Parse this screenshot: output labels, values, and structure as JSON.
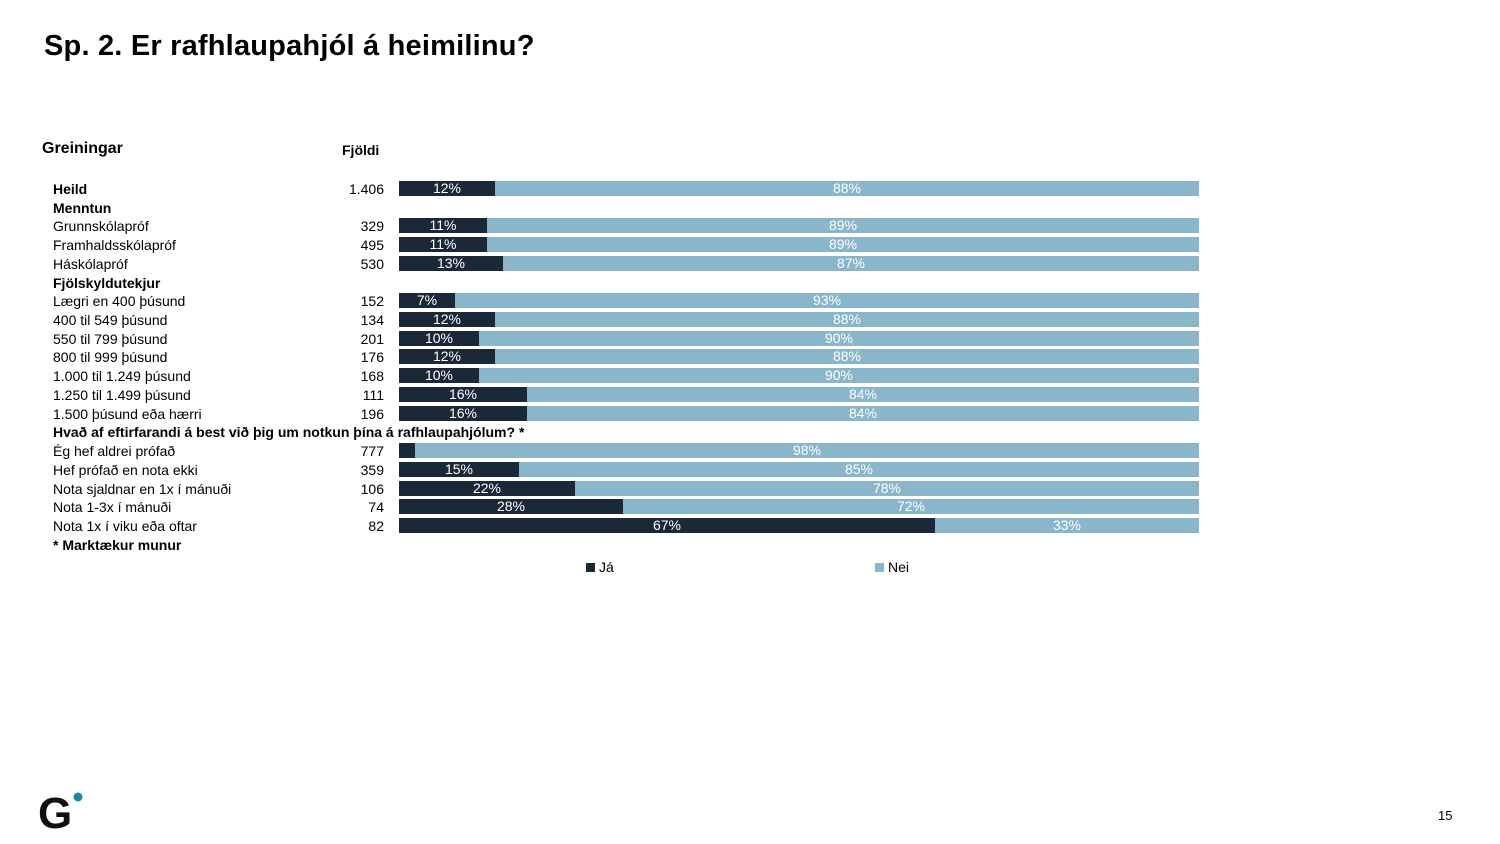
{
  "title": "Sp. 2. Er rafhlaupahjól á heimilinu?",
  "header": {
    "left_label": "Greiningar",
    "count_label": "Fjöldi"
  },
  "colors": {
    "ja": "#1b2838",
    "nei": "#8ab6cb",
    "logo": "#111111",
    "logo_dot": "#1b8a9a"
  },
  "chart_data": {
    "type": "bar",
    "orientation": "horizontal-stacked-100",
    "legend_position": "bottom",
    "series": [
      {
        "name": "Já",
        "color": "#1b2838"
      },
      {
        "name": "Nei",
        "color": "#8ab6cb"
      }
    ],
    "rows": [
      {
        "label": "Heild",
        "bold": true,
        "count": "1.406",
        "ja": 12,
        "nei": 88,
        "ja_label": "12%",
        "nei_label": "88%"
      },
      {
        "label": "Menntun",
        "section": true
      },
      {
        "label": "Grunnskólapróf",
        "count": "329",
        "ja": 11,
        "nei": 89,
        "ja_label": "11%",
        "nei_label": "89%"
      },
      {
        "label": "Framhaldsskólapróf",
        "count": "495",
        "ja": 11,
        "nei": 89,
        "ja_label": "11%",
        "nei_label": "89%"
      },
      {
        "label": "Háskólapróf",
        "count": "530",
        "ja": 13,
        "nei": 87,
        "ja_label": "13%",
        "nei_label": "87%"
      },
      {
        "label": "Fjölskyldutekjur",
        "section": true
      },
      {
        "label": "Lægri en 400 þúsund",
        "count": "152",
        "ja": 7,
        "nei": 93,
        "ja_label": "7%",
        "nei_label": "93%"
      },
      {
        "label": "400 til 549 þúsund",
        "count": "134",
        "ja": 12,
        "nei": 88,
        "ja_label": "12%",
        "nei_label": "88%"
      },
      {
        "label": "550 til 799 þúsund",
        "count": "201",
        "ja": 10,
        "nei": 90,
        "ja_label": "10%",
        "nei_label": "90%"
      },
      {
        "label": "800 til 999 þúsund",
        "count": "176",
        "ja": 12,
        "nei": 88,
        "ja_label": "12%",
        "nei_label": "88%"
      },
      {
        "label": "1.000 til 1.249 þúsund",
        "count": "168",
        "ja": 10,
        "nei": 90,
        "ja_label": "10%",
        "nei_label": "90%"
      },
      {
        "label": "1.250 til 1.499 þúsund",
        "count": "111",
        "ja": 16,
        "nei": 84,
        "ja_label": "16%",
        "nei_label": "84%"
      },
      {
        "label": "1.500 þúsund eða hærri",
        "count": "196",
        "ja": 16,
        "nei": 84,
        "ja_label": "16%",
        "nei_label": "84%"
      },
      {
        "label": "Hvað af eftirfarandi á best við þig um notkun þína á rafhlaupahjólum? *",
        "section": true
      },
      {
        "label": "Ég hef aldrei prófað",
        "count": "777",
        "ja": 2,
        "nei": 98,
        "ja_label": "",
        "nei_label": "98%"
      },
      {
        "label": "Hef prófað en nota ekki",
        "count": "359",
        "ja": 15,
        "nei": 85,
        "ja_label": "15%",
        "nei_label": "85%"
      },
      {
        "label": "Nota sjaldnar en 1x í mánuði",
        "count": "106",
        "ja": 22,
        "nei": 78,
        "ja_label": "22%",
        "nei_label": "78%"
      },
      {
        "label": "Nota 1-3x í mánuði",
        "count": "74",
        "ja": 28,
        "nei": 72,
        "ja_label": "28%",
        "nei_label": "72%"
      },
      {
        "label": "Nota 1x í viku eða oftar",
        "count": "82",
        "ja": 67,
        "nei": 33,
        "ja_label": "67%",
        "nei_label": "33%"
      },
      {
        "label": "* Marktækur munur",
        "section": true
      }
    ]
  },
  "legend": {
    "ja": "Já",
    "nei": "Nei"
  },
  "footer": {
    "logo_letter": "G",
    "page_number": "15"
  }
}
